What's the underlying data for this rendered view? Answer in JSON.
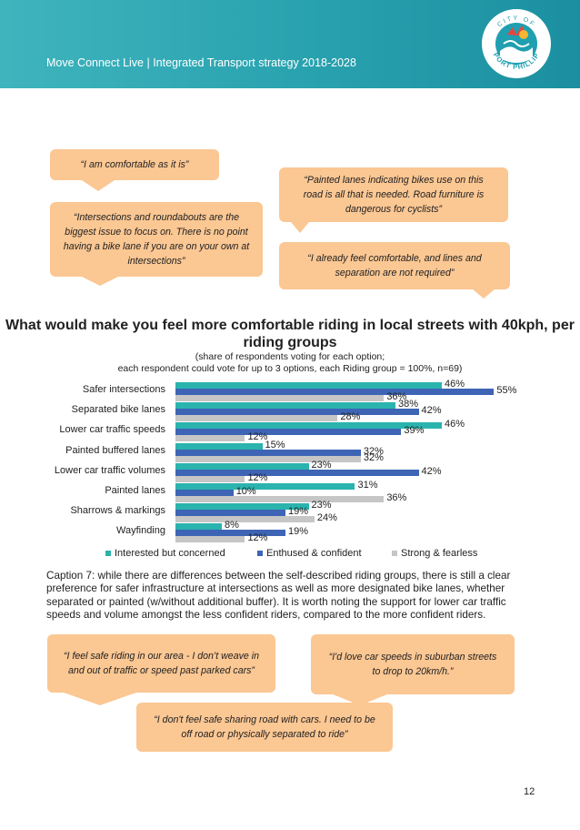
{
  "header": {
    "title": "Move Connect Live | Integrated Transport strategy 2018-2028"
  },
  "logo": {
    "top_text": "CITY OF",
    "bottom_text": "PORT PHILLIP"
  },
  "quotes_top": [
    "“I am comfortable as it is”",
    "“Intersections and roundabouts are the biggest issue to focus on. There is no point having a bike lane if you are on your own at intersections”",
    "“Painted lanes indicating bikes use on this road is all that is needed. Road furniture is dangerous for cyclists”",
    "“I already feel comfortable, and lines and separation are not required”"
  ],
  "chart_title": "What would make you feel more comfortable riding in local streets with 40kph, per riding groups",
  "chart_subtitle_1": "(share of respondents voting for each option;",
  "chart_subtitle_2": "each respondent could vote for up to 3 options, each Riding group = 100%, n=69)",
  "chart_data": {
    "type": "bar",
    "orientation": "horizontal",
    "title": "What would make you feel more comfortable riding in local streets with 40kph, per riding groups",
    "categories": [
      "Safer intersections",
      "Separated bike lanes",
      "Lower car traffic speeds",
      "Painted buffered lanes",
      "Lower car traffic volumes",
      "Painted lanes",
      "Sharrows & markings",
      "Wayfinding"
    ],
    "series": [
      {
        "name": "Interested but concerned",
        "color": "#2bb3ae",
        "values": [
          46,
          38,
          46,
          15,
          23,
          31,
          23,
          8
        ]
      },
      {
        "name": "Enthused & confident",
        "color": "#3d64b5",
        "values": [
          55,
          42,
          39,
          32,
          42,
          10,
          19,
          19
        ]
      },
      {
        "name": "Strong & fearless",
        "color": "#c6c6c6",
        "values": [
          36,
          28,
          12,
          32,
          12,
          36,
          24,
          12
        ]
      }
    ],
    "value_suffix": "%",
    "xlim": [
      0,
      60
    ],
    "legend_position": "bottom"
  },
  "caption": "Caption 7: while there are differences between the self-described riding groups, there is still a clear preference for safer infrastructure at intersections as well as more designated bike lanes, whether separated or painted (w/without additional buffer). It is worth noting the support for lower car traffic speeds and volume amongst the less confident riders, compared to the more confident riders.",
  "quotes_bottom": [
    "“I feel safe riding in our area - I don’t weave in and out of traffic or speed past parked cars”",
    "“I'd love car speeds in suburban streets to drop to 20km/h.”",
    "“I don't feel safe sharing road with cars. I need to be off road or physically separated to ride”"
  ],
  "page_number": "12",
  "colors": {
    "header": "#2aa3b0",
    "bubble": "#fbc793"
  }
}
